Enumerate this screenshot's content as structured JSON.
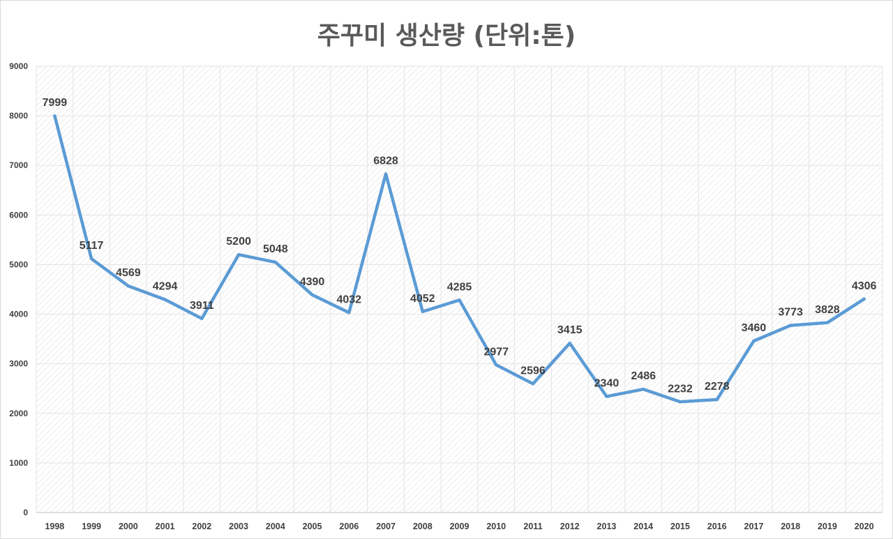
{
  "chart_data": {
    "type": "line",
    "title": "주꾸미 생산량 (단위:톤)",
    "xlabel": "",
    "ylabel": "",
    "categories": [
      "1998",
      "1999",
      "2000",
      "2001",
      "2002",
      "2003",
      "2004",
      "2005",
      "2006",
      "2007",
      "2008",
      "2009",
      "2010",
      "2011",
      "2012",
      "2013",
      "2014",
      "2015",
      "2016",
      "2017",
      "2018",
      "2019",
      "2020"
    ],
    "series": [
      {
        "values": [
          7999,
          5117,
          4569,
          4294,
          3911,
          5200,
          5048,
          4390,
          4032,
          6828,
          4052,
          4285,
          2977,
          2596,
          3415,
          2340,
          2486,
          2232,
          2278,
          3460,
          3773,
          3828,
          4306
        ]
      }
    ],
    "ylim": [
      0,
      9000
    ],
    "yticks": [
      0,
      1000,
      2000,
      3000,
      4000,
      5000,
      6000,
      7000,
      8000,
      9000
    ],
    "grid": true,
    "data_labels": true,
    "line_color": "#5b9bd5"
  }
}
